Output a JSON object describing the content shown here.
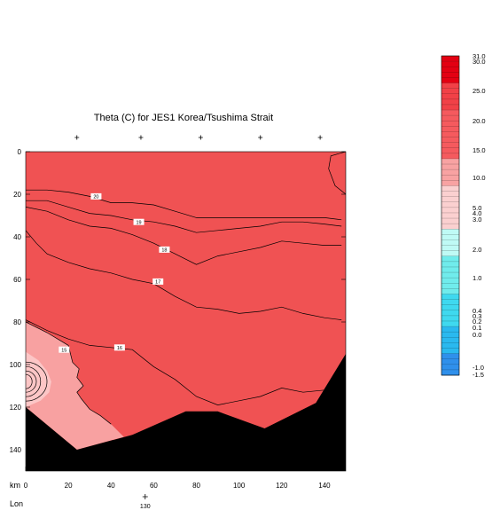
{
  "chart_data": {
    "type": "heatmap",
    "title": "Theta (C) for JES1 Korea/Tsushima Strait",
    "xlabel": "km",
    "ylabel": "",
    "x_ticks": [
      0,
      20,
      40,
      60,
      80,
      100,
      120,
      140
    ],
    "y_ticks": [
      0,
      20,
      40,
      60,
      80,
      100,
      120,
      140
    ],
    "xlim": [
      0,
      150
    ],
    "ylim": [
      0,
      150
    ],
    "y_direction": "down",
    "lon_axis": {
      "label": "Lon",
      "tick_value": "130",
      "tick_km": 56
    },
    "top_tick_km": [
      24,
      54,
      82,
      110,
      138
    ],
    "contours": [
      {
        "label": "20",
        "label_at": [
          33,
          21
        ],
        "points": [
          [
            0,
            18
          ],
          [
            10,
            18
          ],
          [
            20,
            19
          ],
          [
            30,
            21
          ],
          [
            40,
            24
          ],
          [
            50,
            24
          ],
          [
            60,
            25
          ],
          [
            70,
            28
          ],
          [
            80,
            31
          ],
          [
            90,
            31
          ],
          [
            100,
            31
          ],
          [
            110,
            31
          ],
          [
            120,
            31
          ],
          [
            130,
            31
          ],
          [
            140,
            31
          ],
          [
            148,
            32
          ]
        ]
      },
      {
        "label": "19",
        "label_at": [
          53,
          33
        ],
        "points": [
          [
            0,
            23
          ],
          [
            10,
            23
          ],
          [
            20,
            26
          ],
          [
            30,
            29
          ],
          [
            40,
            30
          ],
          [
            50,
            32
          ],
          [
            60,
            33
          ],
          [
            70,
            35
          ],
          [
            80,
            38
          ],
          [
            90,
            37
          ],
          [
            100,
            36
          ],
          [
            110,
            35
          ],
          [
            120,
            33
          ],
          [
            130,
            33
          ],
          [
            140,
            34
          ],
          [
            148,
            35
          ]
        ]
      },
      {
        "label": "18",
        "label_at": [
          65,
          46
        ],
        "points": [
          [
            0,
            26
          ],
          [
            10,
            28
          ],
          [
            20,
            32
          ],
          [
            30,
            35
          ],
          [
            40,
            36
          ],
          [
            50,
            39
          ],
          [
            60,
            43
          ],
          [
            70,
            48
          ],
          [
            80,
            53
          ],
          [
            90,
            49
          ],
          [
            100,
            47
          ],
          [
            110,
            45
          ],
          [
            120,
            42
          ],
          [
            130,
            43
          ],
          [
            140,
            44
          ],
          [
            148,
            44
          ]
        ]
      },
      {
        "label": "17",
        "label_at": [
          62,
          61
        ],
        "points": [
          [
            0,
            37
          ],
          [
            5,
            43
          ],
          [
            10,
            48
          ],
          [
            20,
            52
          ],
          [
            30,
            55
          ],
          [
            40,
            57
          ],
          [
            50,
            60
          ],
          [
            60,
            62
          ],
          [
            70,
            68
          ],
          [
            80,
            73
          ],
          [
            90,
            74
          ],
          [
            100,
            76
          ],
          [
            110,
            75
          ],
          [
            120,
            73
          ],
          [
            130,
            76
          ],
          [
            140,
            78
          ],
          [
            148,
            79
          ]
        ]
      },
      {
        "label": "16",
        "label_at": [
          44,
          92
        ],
        "points": [
          [
            0,
            79
          ],
          [
            10,
            84
          ],
          [
            20,
            88
          ],
          [
            30,
            91
          ],
          [
            40,
            92
          ],
          [
            50,
            93
          ],
          [
            60,
            101
          ],
          [
            70,
            107
          ],
          [
            80,
            115
          ],
          [
            90,
            119
          ],
          [
            100,
            117
          ],
          [
            110,
            115
          ],
          [
            120,
            111
          ],
          [
            130,
            113
          ],
          [
            140,
            112
          ],
          [
            148,
            111
          ]
        ]
      },
      {
        "label": "15",
        "label_at": [
          18,
          93
        ],
        "points": [
          [
            0,
            80
          ],
          [
            10,
            85
          ],
          [
            20,
            91
          ],
          [
            22,
            99
          ],
          [
            25,
            102
          ],
          [
            24,
            106
          ],
          [
            27,
            110
          ],
          [
            24,
            113
          ],
          [
            26,
            116
          ],
          [
            30,
            121
          ],
          [
            35,
            124
          ],
          [
            40,
            128
          ]
        ]
      }
    ],
    "colorbar": {
      "labels": [
        "31.0",
        "30.0",
        "25.0",
        "20.0",
        "15.0",
        "10.0",
        "5.0",
        "4.0",
        "3.0",
        "2.0",
        "1.0",
        "0.4",
        "0.3",
        "0.2",
        "0.1",
        "0.0",
        "-1.0",
        "-1.5"
      ],
      "colors": {
        "max": "#e30012",
        "warm_high": "#f14147",
        "warm_mid": "#f55a5e",
        "warm_low": "#f8a2a2",
        "pale": "#fbd0d0",
        "aqua_light": "#bffaf5",
        "aqua": "#70ecec",
        "cyan": "#3fd9ef",
        "blue_mid": "#2ab9ef",
        "blue": "#2f90eb"
      }
    },
    "fill_colors": {
      "main": "#f05253",
      "coast_band": "#f8a1a1",
      "coast_core": "#fcc6c6",
      "bathymetry": "#000000",
      "contour": "#000000"
    }
  }
}
